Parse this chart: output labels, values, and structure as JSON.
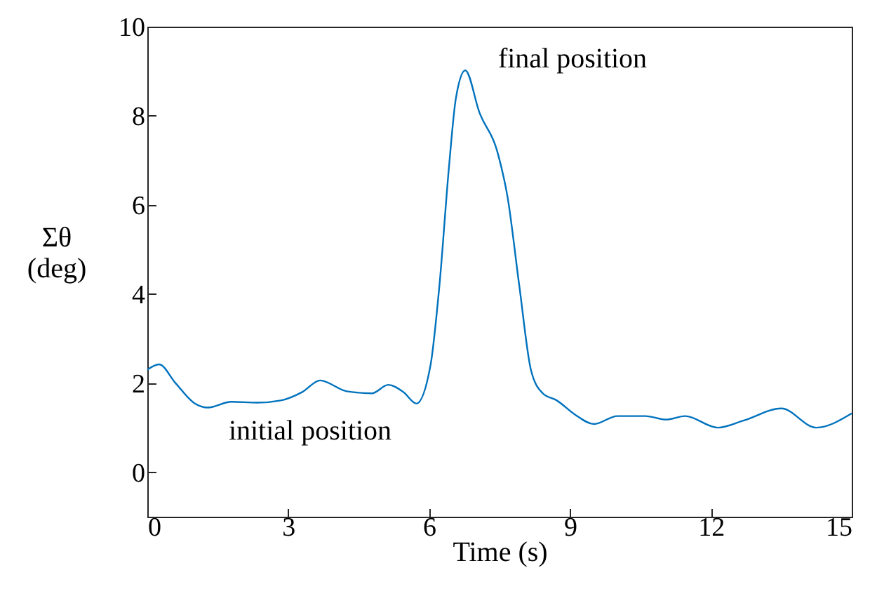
{
  "chart_data": {
    "type": "line",
    "xlabel": "Time (s)",
    "ylabel": "Σθ (deg)",
    "xlim": [
      0,
      15
    ],
    "xticks": [
      0,
      3,
      6,
      9,
      12,
      15
    ],
    "ylim": [
      -1,
      10
    ],
    "yticks": [
      0,
      2,
      4,
      6,
      8,
      10
    ],
    "annotations": [
      "final position",
      "initial position"
    ],
    "series": [
      {
        "color": "#0072bd",
        "x": [
          0,
          0.25,
          0.6,
          1.0,
          1.29,
          1.79,
          2.34,
          2.84,
          3.3,
          3.68,
          4.23,
          4.78,
          5.13,
          5.45,
          5.73,
          6.03,
          6.22,
          6.42,
          6.57,
          6.77,
          7.07,
          7.47,
          7.67,
          7.92,
          8.17,
          8.42,
          8.72,
          9.11,
          9.51,
          10.01,
          10.61,
          11.05,
          11.45,
          12.15,
          12.7,
          13.5,
          14.24,
          15
        ],
        "values": [
          2.3,
          2.42,
          2.0,
          1.55,
          1.45,
          1.58,
          1.56,
          1.61,
          1.8,
          2.06,
          1.82,
          1.77,
          1.96,
          1.8,
          1.54,
          2.4,
          4.19,
          6.81,
          8.39,
          9.02,
          8.08,
          7.13,
          6.18,
          4.19,
          2.29,
          1.77,
          1.61,
          1.29,
          1.08,
          1.26,
          1.26,
          1.18,
          1.26,
          1.0,
          1.16,
          1.43,
          1.0,
          1.32
        ]
      }
    ]
  }
}
